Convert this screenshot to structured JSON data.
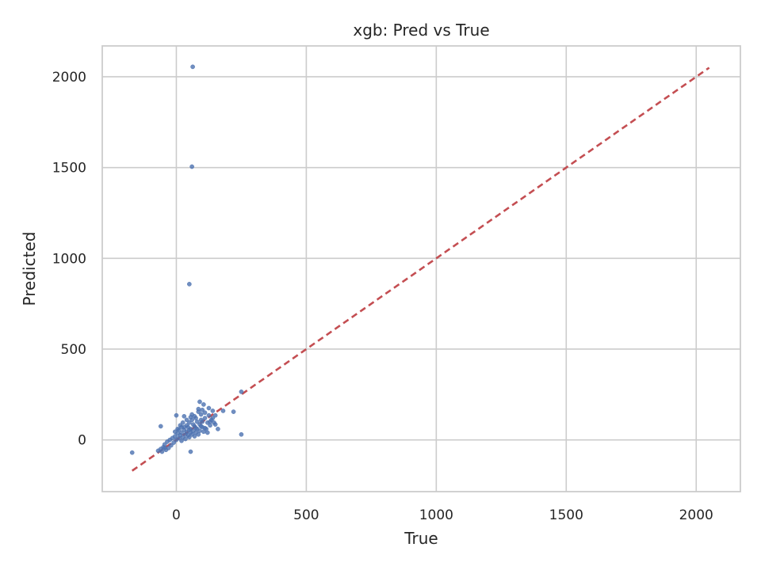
{
  "chart_data": {
    "type": "scatter",
    "title": "xgb: Pred vs True",
    "xlabel": "True",
    "ylabel": "Predicted",
    "xlim": [
      -285,
      2170
    ],
    "ylim": [
      -285,
      2170
    ],
    "x_ticks": [
      0,
      500,
      1000,
      1500,
      2000
    ],
    "y_ticks": [
      0,
      500,
      1000,
      1500,
      2000
    ],
    "grid": true,
    "colors": {
      "points": "#4c72b0",
      "reference_line": "#c44e52",
      "grid": "#cccccc",
      "spine": "#cccccc"
    },
    "reference_line": {
      "style": "dashed",
      "from": [
        -170,
        -170
      ],
      "to": [
        2050,
        2050
      ]
    },
    "points": [
      [
        63,
        2055
      ],
      [
        60,
        1505
      ],
      [
        50,
        858
      ],
      [
        250,
        265
      ],
      [
        -170,
        -70
      ],
      [
        55,
        -65
      ],
      [
        250,
        30
      ],
      [
        -60,
        75
      ],
      [
        0,
        135
      ],
      [
        30,
        130
      ],
      [
        90,
        210
      ],
      [
        105,
        195
      ],
      [
        125,
        175
      ],
      [
        140,
        160
      ],
      [
        180,
        160
      ],
      [
        220,
        155
      ],
      [
        125,
        135
      ],
      [
        150,
        135
      ],
      [
        85,
        155
      ],
      [
        95,
        140
      ],
      [
        75,
        120
      ],
      [
        110,
        120
      ],
      [
        60,
        110
      ],
      [
        100,
        100
      ],
      [
        80,
        100
      ],
      [
        50,
        95
      ],
      [
        120,
        95
      ],
      [
        90,
        85
      ],
      [
        65,
        85
      ],
      [
        40,
        80
      ],
      [
        130,
        80
      ],
      [
        70,
        75
      ],
      [
        20,
        70
      ],
      [
        45,
        70
      ],
      [
        100,
        70
      ],
      [
        110,
        65
      ],
      [
        160,
        60
      ],
      [
        55,
        60
      ],
      [
        10,
        55
      ],
      [
        80,
        60
      ],
      [
        30,
        55
      ],
      [
        65,
        50
      ],
      [
        90,
        50
      ],
      [
        40,
        45
      ],
      [
        105,
        45
      ],
      [
        20,
        40
      ],
      [
        55,
        40
      ],
      [
        75,
        40
      ],
      [
        5,
        35
      ],
      [
        35,
        30
      ],
      [
        60,
        30
      ],
      [
        85,
        30
      ],
      [
        15,
        25
      ],
      [
        45,
        25
      ],
      [
        -5,
        20
      ],
      [
        25,
        15
      ],
      [
        50,
        15
      ],
      [
        70,
        20
      ],
      [
        -15,
        10
      ],
      [
        10,
        10
      ],
      [
        35,
        5
      ],
      [
        -25,
        0
      ],
      [
        0,
        0
      ],
      [
        20,
        -5
      ],
      [
        -35,
        -10
      ],
      [
        -10,
        -15
      ],
      [
        -45,
        -25
      ],
      [
        -20,
        -30
      ],
      [
        -50,
        -40
      ],
      [
        -30,
        -45
      ],
      [
        -60,
        -50
      ],
      [
        -40,
        -55
      ],
      [
        -70,
        -60
      ],
      [
        -55,
        -65
      ],
      [
        -45,
        -45
      ],
      [
        130,
        100
      ],
      [
        140,
        120
      ],
      [
        115,
        60
      ],
      [
        150,
        85
      ],
      [
        120,
        40
      ],
      [
        95,
        110
      ],
      [
        70,
        130
      ],
      [
        55,
        125
      ],
      [
        85,
        170
      ],
      [
        100,
        165
      ],
      [
        60,
        140
      ],
      [
        40,
        110
      ],
      [
        25,
        95
      ],
      [
        15,
        80
      ],
      [
        5,
        60
      ],
      [
        -5,
        45
      ],
      [
        30,
        70
      ],
      [
        50,
        55
      ],
      [
        75,
        65
      ],
      [
        95,
        75
      ],
      [
        135,
        110
      ],
      [
        145,
        95
      ],
      [
        110,
        150
      ]
    ]
  }
}
